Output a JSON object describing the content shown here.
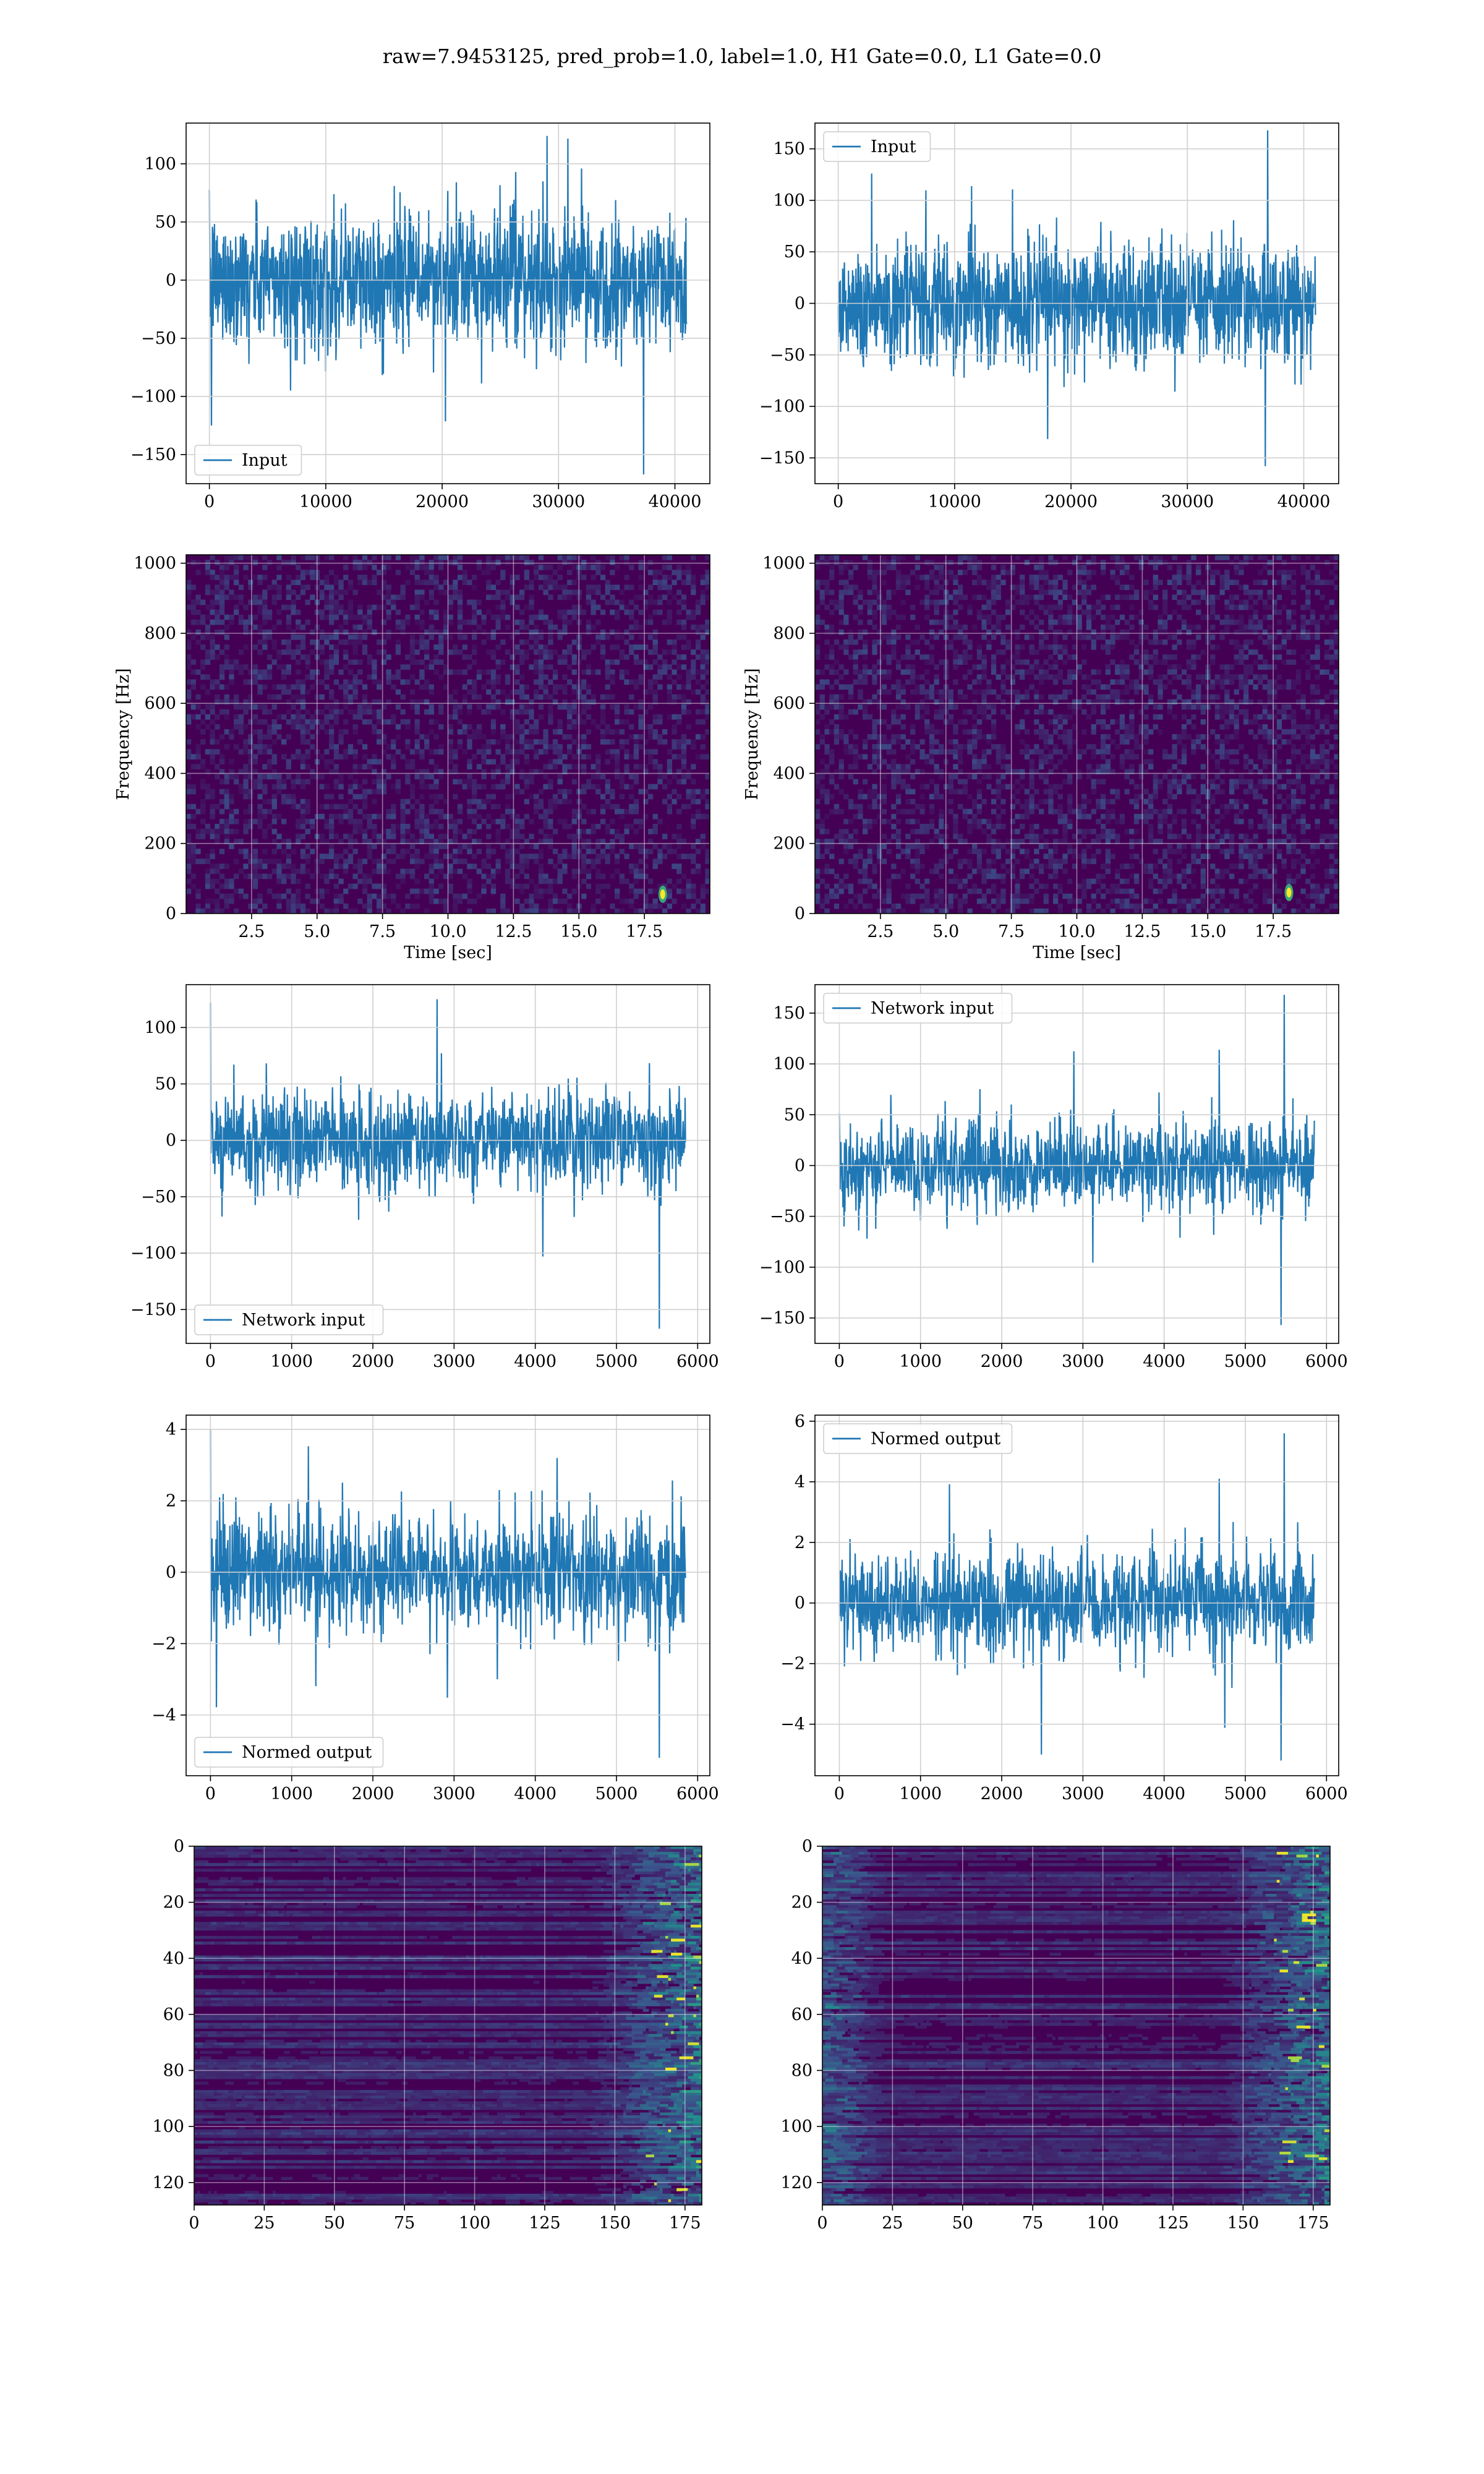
{
  "figure": {
    "suptitle": "raw=7.9453125, pred_prob=1.0, label=1.0, H1 Gate=0.0, L1 Gate=0.0"
  },
  "colors": {
    "line": "#1f77b4",
    "grid": "#d0d0d0",
    "viridis_dark": "#440154",
    "viridis_mid": "#21918c",
    "viridis_bright": "#fde725"
  },
  "chart_data": [
    {
      "id": "h1-input",
      "type": "line",
      "series": [
        {
          "name": "Input",
          "values_summary": "noise ~[-90,90], min -167 near x=37500, max 124 near x=29000"
        }
      ],
      "xlim": [
        -2000,
        43000
      ],
      "ylim": [
        -175,
        135
      ],
      "xticks": [
        0,
        10000,
        20000,
        30000,
        40000
      ],
      "xtick_labels": [
        "0",
        "10000",
        "20000",
        "30000",
        "40000"
      ],
      "yticks": [
        -150,
        -100,
        -50,
        0,
        50,
        100
      ],
      "ytick_labels": [
        "−150",
        "−100",
        "−50",
        "0",
        "50",
        "100"
      ],
      "legend": "lower-left",
      "grid": true
    },
    {
      "id": "l1-input",
      "type": "line",
      "series": [
        {
          "name": "Input",
          "values_summary": "noise ~[-95,95], max 168 near x=37200, min -158 near x=37000"
        }
      ],
      "xlim": [
        -2000,
        43000
      ],
      "ylim": [
        -175,
        175
      ],
      "xticks": [
        0,
        10000,
        20000,
        30000,
        40000
      ],
      "xtick_labels": [
        "0",
        "10000",
        "20000",
        "30000",
        "40000"
      ],
      "yticks": [
        -150,
        -100,
        -50,
        0,
        50,
        100,
        150
      ],
      "ytick_labels": [
        "−150",
        "−100",
        "−50",
        "0",
        "50",
        "100",
        "150"
      ],
      "legend": "upper-left",
      "grid": true
    },
    {
      "id": "h1-spectrogram",
      "type": "heatmap",
      "xlabel": "Time [sec]",
      "ylabel": "Frequency [Hz]",
      "xlim": [
        0,
        20
      ],
      "ylim": [
        0,
        1024
      ],
      "xticks": [
        2.5,
        5.0,
        7.5,
        10.0,
        12.5,
        15.0,
        17.5
      ],
      "xtick_labels": [
        "2.5",
        "5.0",
        "7.5",
        "10.0",
        "12.5",
        "15.0",
        "17.5"
      ],
      "yticks": [
        0,
        200,
        400,
        600,
        800,
        1000
      ],
      "ytick_labels": [
        "0",
        "200",
        "400",
        "600",
        "800",
        "1000"
      ],
      "hotspot": {
        "time": 18.2,
        "freq": 55
      },
      "colormap": "viridis",
      "grid": true
    },
    {
      "id": "l1-spectrogram",
      "type": "heatmap",
      "xlabel": "Time [sec]",
      "ylabel": "Frequency [Hz]",
      "xlim": [
        0,
        20
      ],
      "ylim": [
        0,
        1024
      ],
      "xticks": [
        2.5,
        5.0,
        7.5,
        10.0,
        12.5,
        15.0,
        17.5
      ],
      "xtick_labels": [
        "2.5",
        "5.0",
        "7.5",
        "10.0",
        "12.5",
        "15.0",
        "17.5"
      ],
      "yticks": [
        0,
        200,
        400,
        600,
        800,
        1000
      ],
      "ytick_labels": [
        "0",
        "200",
        "400",
        "600",
        "800",
        "1000"
      ],
      "hotspot": {
        "time": 18.1,
        "freq": 60
      },
      "colormap": "viridis",
      "grid": true
    },
    {
      "id": "h1-network-input",
      "type": "line",
      "series": [
        {
          "name": "Network input",
          "values_summary": "noise ~[-60,60], first point 122, min -167 near x=5500"
        }
      ],
      "xlim": [
        -300,
        6150
      ],
      "ylim": [
        -180,
        138
      ],
      "xticks": [
        0,
        1000,
        2000,
        3000,
        4000,
        5000,
        6000
      ],
      "xtick_labels": [
        "0",
        "1000",
        "2000",
        "3000",
        "4000",
        "5000",
        "6000"
      ],
      "yticks": [
        -150,
        -100,
        -50,
        0,
        50,
        100
      ],
      "ytick_labels": [
        "−150",
        "−100",
        "−50",
        "0",
        "50",
        "100"
      ],
      "legend": "lower-left",
      "grid": true
    },
    {
      "id": "l1-network-input",
      "type": "line",
      "series": [
        {
          "name": "Network input",
          "values_summary": "noise ~[-60,60], max 168 near x=5470, min -157 near x=5430"
        }
      ],
      "xlim": [
        -300,
        6150
      ],
      "ylim": [
        -175,
        178
      ],
      "xticks": [
        0,
        1000,
        2000,
        3000,
        4000,
        5000,
        6000
      ],
      "xtick_labels": [
        "0",
        "1000",
        "2000",
        "3000",
        "4000",
        "5000",
        "6000"
      ],
      "yticks": [
        -150,
        -100,
        -50,
        0,
        50,
        100,
        150
      ],
      "ytick_labels": [
        "−150",
        "−100",
        "−50",
        "0",
        "50",
        "100",
        "150"
      ],
      "legend": "upper-left",
      "grid": true
    },
    {
      "id": "h1-normed-output",
      "type": "line",
      "series": [
        {
          "name": "Normed output",
          "values_summary": "noise ~[-2.5,2.5], first point 4.0, min -5.2 near x=5500"
        }
      ],
      "xlim": [
        -300,
        6150
      ],
      "ylim": [
        -5.7,
        4.4
      ],
      "xticks": [
        0,
        1000,
        2000,
        3000,
        4000,
        5000,
        6000
      ],
      "xtick_labels": [
        "0",
        "1000",
        "2000",
        "3000",
        "4000",
        "5000",
        "6000"
      ],
      "yticks": [
        -4,
        -2,
        0,
        2,
        4
      ],
      "ytick_labels": [
        "−4",
        "−2",
        "0",
        "2",
        "4"
      ],
      "legend": "lower-left",
      "grid": true
    },
    {
      "id": "l1-normed-output",
      "type": "line",
      "series": [
        {
          "name": "Normed output",
          "values_summary": "noise ~[-2.5,2.5], max 5.6 near x=5470, min -5.2 near x=5430"
        }
      ],
      "xlim": [
        -300,
        6150
      ],
      "ylim": [
        -5.7,
        6.2
      ],
      "xticks": [
        0,
        1000,
        2000,
        3000,
        4000,
        5000,
        6000
      ],
      "xtick_labels": [
        "0",
        "1000",
        "2000",
        "3000",
        "4000",
        "5000",
        "6000"
      ],
      "yticks": [
        -4,
        -2,
        0,
        2,
        4,
        6
      ],
      "ytick_labels": [
        "−4",
        "−2",
        "0",
        "2",
        "4",
        "6"
      ],
      "legend": "upper-left",
      "grid": true
    },
    {
      "id": "h1-feature-map",
      "type": "heatmap",
      "xlim": [
        0,
        181
      ],
      "ylim": [
        128,
        0
      ],
      "xticks": [
        0,
        25,
        50,
        75,
        100,
        125,
        150,
        175
      ],
      "xtick_labels": [
        "0",
        "25",
        "50",
        "75",
        "100",
        "125",
        "150",
        "175"
      ],
      "yticks": [
        0,
        20,
        40,
        60,
        80,
        100,
        120
      ],
      "ytick_labels": [
        "0",
        "20",
        "40",
        "60",
        "80",
        "100",
        "120"
      ],
      "note": "bright activations concentrated at columns ~150-180",
      "colormap": "viridis",
      "grid": true
    },
    {
      "id": "l1-feature-map",
      "type": "heatmap",
      "xlim": [
        0,
        181
      ],
      "ylim": [
        128,
        0
      ],
      "xticks": [
        0,
        25,
        50,
        75,
        100,
        125,
        150,
        175
      ],
      "xtick_labels": [
        "0",
        "25",
        "50",
        "75",
        "100",
        "125",
        "150",
        "175"
      ],
      "yticks": [
        0,
        20,
        40,
        60,
        80,
        100,
        120
      ],
      "ytick_labels": [
        "0",
        "20",
        "40",
        "60",
        "80",
        "100",
        "120"
      ],
      "note": "activations at columns ~0-20 and ~140-180",
      "colormap": "viridis",
      "grid": true
    }
  ]
}
